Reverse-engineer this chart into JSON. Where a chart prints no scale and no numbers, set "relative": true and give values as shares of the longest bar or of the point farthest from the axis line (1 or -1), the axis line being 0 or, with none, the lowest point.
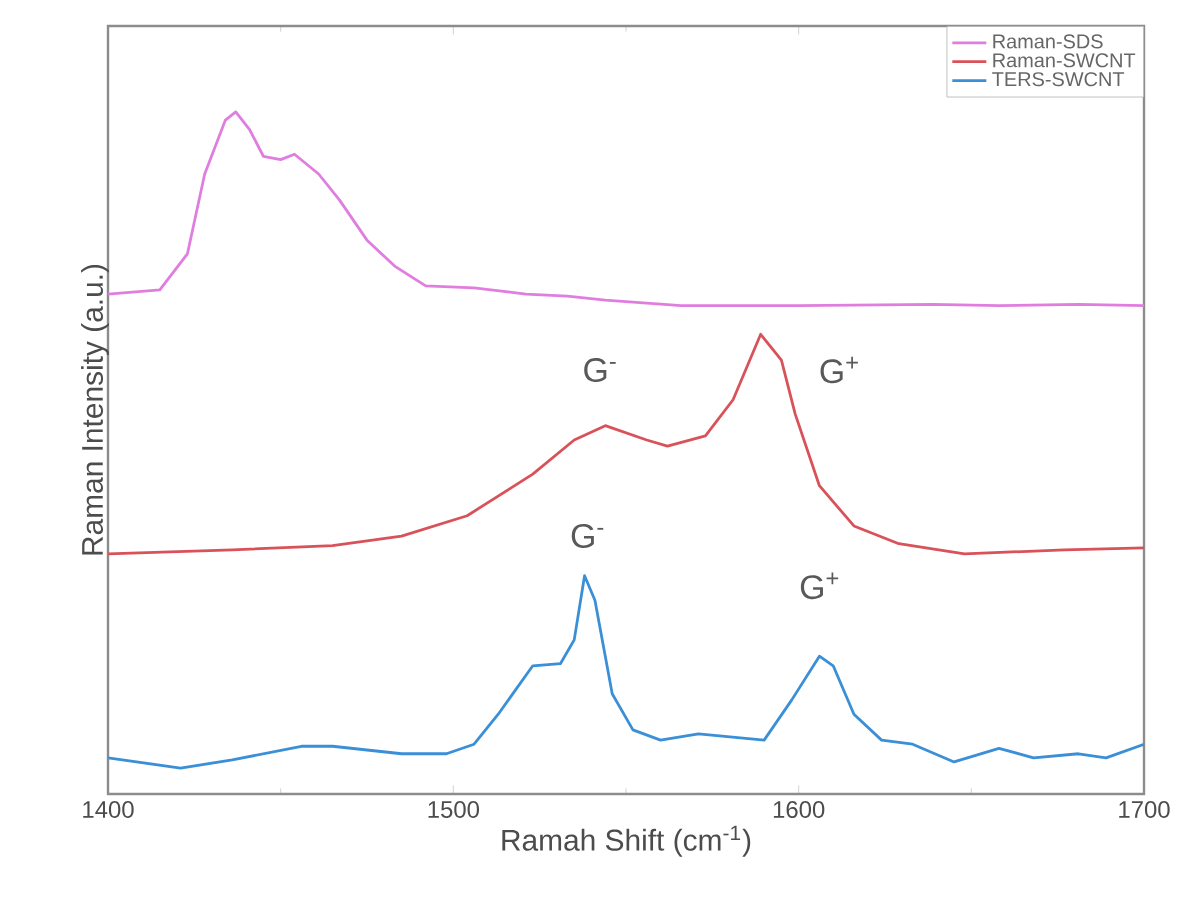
{
  "chart_data": {
    "type": "line",
    "xlabel": "Ramah Shift (cm$^{-1}$)",
    "ylabel": "Raman Intensity (a.u.)",
    "relative": true,
    "xlim": [
      1400,
      1700
    ],
    "xticks": [
      1400,
      1500,
      1600,
      1700
    ],
    "tick_labels": "x",
    "legend": "top right",
    "marker": "none",
    "line_style": "solid",
    "series": [
      {
        "name": "Raman-SDS",
        "color": "#e07ee0",
        "x": [
          1400,
          1415,
          1423,
          1428,
          1434,
          1437,
          1441,
          1445,
          1450,
          1454,
          1461,
          1467,
          1475,
          1483,
          1492,
          1506,
          1521,
          1533,
          1544,
          1566,
          1600,
          1639,
          1658,
          1681,
          1700
        ],
        "values": [
          0.733,
          0.739,
          0.792,
          0.909,
          0.988,
          1.0,
          0.974,
          0.935,
          0.93,
          0.938,
          0.909,
          0.871,
          0.812,
          0.774,
          0.745,
          0.742,
          0.733,
          0.73,
          0.724,
          0.716,
          0.716,
          0.718,
          0.716,
          0.718,
          0.716
        ]
      },
      {
        "name": "Raman-SWCNT",
        "color": "#d9525a",
        "x": [
          1400,
          1436,
          1465,
          1485,
          1504,
          1523,
          1535,
          1544,
          1556,
          1562,
          1573,
          1581,
          1589,
          1595,
          1599,
          1606,
          1616,
          1629,
          1648,
          1677,
          1700
        ],
        "values": [
          0.352,
          0.358,
          0.364,
          0.378,
          0.408,
          0.469,
          0.519,
          0.54,
          0.519,
          0.51,
          0.525,
          0.578,
          0.674,
          0.636,
          0.557,
          0.452,
          0.393,
          0.367,
          0.352,
          0.358,
          0.361
        ]
      },
      {
        "name": "TERS-SWCNT",
        "color": "#3a8fd6",
        "x": [
          1400,
          1421,
          1436,
          1456,
          1465,
          1485,
          1498,
          1506,
          1513,
          1523,
          1531,
          1535,
          1538,
          1541,
          1546,
          1552,
          1560,
          1571,
          1590,
          1598,
          1606,
          1610,
          1616,
          1624,
          1633,
          1645,
          1658,
          1668,
          1681,
          1689,
          1700
        ],
        "values": [
          0.053,
          0.038,
          0.05,
          0.07,
          0.07,
          0.059,
          0.059,
          0.073,
          0.117,
          0.188,
          0.191,
          0.226,
          0.32,
          0.284,
          0.147,
          0.094,
          0.079,
          0.088,
          0.079,
          0.138,
          0.202,
          0.188,
          0.117,
          0.079,
          0.073,
          0.047,
          0.067,
          0.053,
          0.059,
          0.053,
          0.073
        ]
      }
    ],
    "annotations": [
      "G$^{-}$",
      "G$^{+}$",
      "G$^{-}$",
      "G$^{+}$"
    ]
  }
}
